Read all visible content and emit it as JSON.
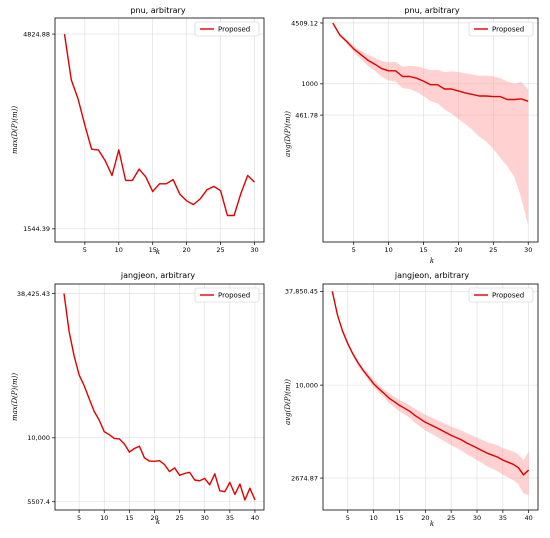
{
  "chart_data": [
    {
      "type": "line",
      "title": "pnu, arbitrary",
      "xlabel": "k",
      "ylabel": "max(D(P)(m))",
      "legend": [
        "Proposed"
      ],
      "legend_position": "top-right",
      "y_scale": "log",
      "xlim": [
        0.6,
        31.4
      ],
      "ylim": [
        1430,
        5300
      ],
      "xticks": [
        5,
        10,
        15,
        20,
        25,
        30
      ],
      "yticks": [
        1544.39,
        4824.88
      ],
      "ytick_labels": [
        "1544.39",
        "4824.88"
      ],
      "grid": true,
      "series": [
        {
          "name": "Proposed",
          "color": "#e00000",
          "x": [
            2,
            3,
            4,
            5,
            6,
            7,
            8,
            9,
            10,
            11,
            12,
            13,
            14,
            15,
            16,
            17,
            18,
            19,
            20,
            21,
            22,
            23,
            24,
            25,
            26,
            27,
            28,
            29,
            30
          ],
          "y": [
            4824.88,
            3690,
            3300,
            2830,
            2460,
            2450,
            2300,
            2110,
            2450,
            2050,
            2050,
            2190,
            2090,
            1920,
            2010,
            2010,
            2060,
            1890,
            1820,
            1780,
            1840,
            1940,
            1980,
            1930,
            1670,
            1670,
            1900,
            2110,
            2030
          ]
        }
      ]
    },
    {
      "type": "line",
      "title": "pnu, arbitrary",
      "xlabel": "k",
      "ylabel": "avg(D(P)(m))",
      "legend": [
        "Proposed"
      ],
      "legend_position": "top-right",
      "y_scale": "log",
      "xlim": [
        0.6,
        31.4
      ],
      "ylim": [
        20,
        5100
      ],
      "xticks": [
        5,
        10,
        15,
        20,
        25,
        30
      ],
      "yticks": [
        461.78,
        1000,
        4509.12
      ],
      "ytick_labels": [
        "461.78",
        "1000",
        "4509.12"
      ],
      "grid": true,
      "series": [
        {
          "name": "Proposed",
          "color": "#e00000",
          "x": [
            2,
            3,
            4,
            5,
            6,
            7,
            8,
            9,
            10,
            11,
            12,
            13,
            14,
            15,
            16,
            17,
            18,
            19,
            20,
            21,
            22,
            23,
            24,
            25,
            26,
            27,
            28,
            29,
            30
          ],
          "y": [
            4509.12,
            3350,
            2850,
            2380,
            2070,
            1800,
            1630,
            1460,
            1380,
            1380,
            1200,
            1200,
            1150,
            1070,
            980,
            980,
            880,
            880,
            840,
            800,
            770,
            740,
            740,
            730,
            730,
            680,
            680,
            690,
            650
          ],
          "band_upper": [
            4509.12,
            3450,
            3000,
            2550,
            2280,
            2050,
            1900,
            1760,
            1700,
            1720,
            1530,
            1560,
            1540,
            1480,
            1400,
            1420,
            1330,
            1360,
            1340,
            1300,
            1260,
            1220,
            1230,
            1210,
            1150,
            1060,
            1000,
            1050,
            870
          ],
          "band_lower": [
            4509.12,
            3250,
            2700,
            2200,
            1860,
            1560,
            1380,
            1190,
            1090,
            1060,
            900,
            880,
            820,
            740,
            650,
            620,
            530,
            480,
            420,
            370,
            320,
            270,
            240,
            200,
            160,
            130,
            100,
            60,
            30
          ]
        }
      ]
    },
    {
      "type": "line",
      "title": "jangjeon, arbitrary",
      "xlabel": "k",
      "ylabel": "max(D(P)(m))",
      "legend": [
        "Proposed"
      ],
      "legend_position": "top-right",
      "y_scale": "log",
      "xlim": [
        0.2,
        41.8
      ],
      "ylim": [
        5100,
        42000
      ],
      "xticks": [
        5,
        10,
        15,
        20,
        25,
        30,
        35,
        40
      ],
      "yticks": [
        5507.4,
        10000,
        38425.43
      ],
      "ytick_labels": [
        "5507.4",
        "10,000",
        "38,425.43"
      ],
      "grid": true,
      "series": [
        {
          "name": "Proposed",
          "color": "#e00000",
          "x": [
            2,
            3,
            4,
            5,
            6,
            7,
            8,
            9,
            10,
            11,
            12,
            13,
            14,
            15,
            16,
            17,
            18,
            19,
            20,
            21,
            22,
            23,
            24,
            25,
            26,
            27,
            28,
            29,
            30,
            31,
            32,
            33,
            34,
            35,
            36,
            37,
            38,
            39,
            40
          ],
          "y": [
            38425.43,
            27000,
            21500,
            18000,
            16300,
            14400,
            12800,
            11800,
            10600,
            10300,
            9950,
            9900,
            9450,
            8750,
            9050,
            9250,
            8300,
            8050,
            8030,
            8080,
            7800,
            7300,
            7550,
            7050,
            7170,
            7250,
            6750,
            6700,
            6850,
            6450,
            7150,
            6100,
            6050,
            6600,
            5900,
            6500,
            5600,
            6250,
            5600
          ]
        }
      ]
    },
    {
      "type": "line",
      "title": "jangjeon, arbitrary",
      "xlabel": "k",
      "ylabel": "avg(D(P)(m))",
      "legend": [
        "Proposed"
      ],
      "legend_position": "top-right",
      "y_scale": "log",
      "xlim": [
        0.2,
        41.8
      ],
      "ylim": [
        1700,
        42000
      ],
      "xticks": [
        5,
        10,
        15,
        20,
        25,
        30,
        35,
        40
      ],
      "yticks": [
        2674.87,
        10000,
        37850.45
      ],
      "ytick_labels": [
        "2674.87",
        "10,000",
        "37,850.45"
      ],
      "grid": true,
      "series": [
        {
          "name": "Proposed",
          "color": "#e00000",
          "x": [
            2,
            3,
            4,
            5,
            6,
            7,
            8,
            9,
            10,
            11,
            12,
            13,
            14,
            15,
            16,
            17,
            18,
            19,
            20,
            21,
            22,
            23,
            24,
            25,
            26,
            27,
            28,
            29,
            30,
            31,
            32,
            33,
            34,
            35,
            36,
            37,
            38,
            39,
            40
          ],
          "y": [
            37850.45,
            27000,
            21500,
            18000,
            15500,
            13700,
            12300,
            11200,
            10200,
            9500,
            8900,
            8300,
            7900,
            7500,
            7200,
            6900,
            6500,
            6200,
            5900,
            5700,
            5500,
            5300,
            5100,
            4900,
            4750,
            4600,
            4400,
            4250,
            4100,
            3950,
            3800,
            3700,
            3600,
            3450,
            3350,
            3250,
            3100,
            2800,
            3000
          ],
          "band_upper": [
            37850.45,
            27400,
            22000,
            18500,
            16000,
            14200,
            12800,
            11700,
            10800,
            10000,
            9400,
            8900,
            8500,
            8100,
            7800,
            7500,
            7150,
            6850,
            6550,
            6350,
            6150,
            5950,
            5750,
            5550,
            5400,
            5250,
            5050,
            4900,
            4750,
            4600,
            4450,
            4350,
            4250,
            4100,
            4000,
            3900,
            3750,
            3450,
            3900
          ],
          "band_lower": [
            37850.45,
            26600,
            21000,
            17500,
            15000,
            13200,
            11800,
            10700,
            9700,
            9000,
            8400,
            7700,
            7300,
            6900,
            6600,
            6300,
            5850,
            5550,
            5250,
            5050,
            4850,
            4650,
            4450,
            4250,
            4100,
            3950,
            3750,
            3600,
            3450,
            3300,
            3150,
            3050,
            2950,
            2800,
            2700,
            2600,
            2450,
            2150,
            2100
          ]
        }
      ]
    }
  ]
}
